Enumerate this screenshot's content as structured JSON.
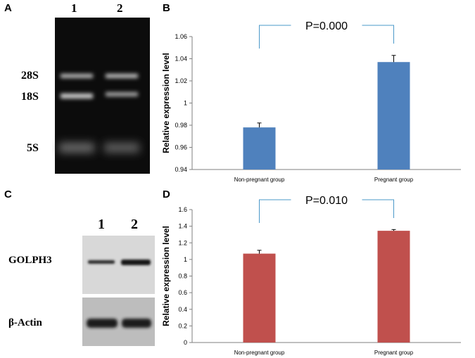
{
  "panels": {
    "a": {
      "letter": "A",
      "lanes": [
        "1",
        "2"
      ],
      "rna_labels": [
        "28S",
        "18S",
        "5S"
      ]
    },
    "b": {
      "letter": "B"
    },
    "c": {
      "letter": "C",
      "lanes": [
        "1",
        "2"
      ],
      "row_labels": [
        "GOLPH3",
        "β-Actin"
      ]
    },
    "d": {
      "letter": "D"
    }
  },
  "chart_data": [
    {
      "type": "bar",
      "panel": "B",
      "categories": [
        "Non-pregnant group",
        "Pregnant group"
      ],
      "values": [
        0.978,
        1.037
      ],
      "errors": [
        0.004,
        0.006
      ],
      "ylabel": "Relative expression level",
      "ylim": [
        0.94,
        1.06
      ],
      "yticks": [
        "0.94",
        "0.96",
        "0.98",
        "1",
        "1.02",
        "1.04",
        "1.06"
      ],
      "annotation": "P=0.000",
      "bar_color": "#4f81bd",
      "grid": false
    },
    {
      "type": "bar",
      "panel": "D",
      "categories": [
        "Non-pregnant group",
        "Pregnant group"
      ],
      "values": [
        1.07,
        1.345
      ],
      "errors": [
        0.04,
        0.015
      ],
      "ylabel": "Relative expression level",
      "ylim": [
        0,
        1.6
      ],
      "yticks": [
        "0",
        "0.2",
        "0.4",
        "0.6",
        "0.8",
        "1",
        "1.2",
        "1.4",
        "1.6"
      ],
      "annotation": "P=0.010",
      "bar_color": "#c0504d",
      "grid": false
    }
  ]
}
